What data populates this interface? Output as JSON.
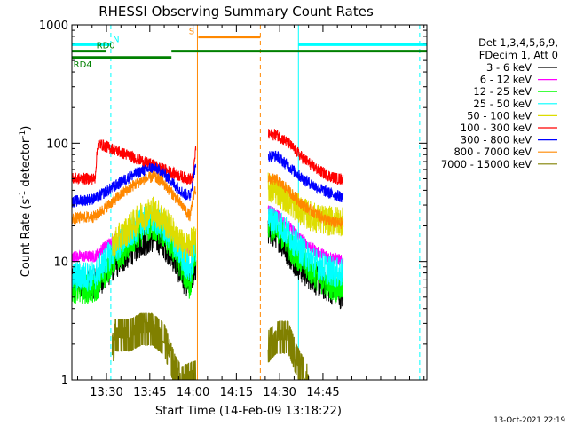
{
  "chart_data": {
    "type": "line",
    "title": "RHESSI Observing Summary Count Rates",
    "xlabel": "Start Time (14-Feb-09 13:18:22)",
    "ylabel_main": "Count Rate (s",
    "ylabel_sup1": "-1",
    "ylabel_mid": " detector",
    "ylabel_sup2": "-1",
    "ylabel_end": ")",
    "yscale": "log",
    "ylim": [
      1,
      1000
    ],
    "xlim_min": [
      798,
      921
    ],
    "yticks": [
      {
        "v": 1,
        "label": "1"
      },
      {
        "v": 10,
        "label": "10"
      },
      {
        "v": 100,
        "label": "100"
      },
      {
        "v": 1000,
        "label": "1000"
      }
    ],
    "xticks": [
      {
        "v": 810,
        "label": "13:30"
      },
      {
        "v": 825,
        "label": "13:45"
      },
      {
        "v": 840,
        "label": "14:00"
      },
      {
        "v": 855,
        "label": "14:15"
      },
      {
        "v": 870,
        "label": "14:30"
      },
      {
        "v": 885,
        "label": "14:45"
      }
    ],
    "legend_header": [
      "Det 1,3,4,5,6,9,",
      "FDecim 1, Att 0"
    ],
    "legend_position": "right",
    "timestamp": "13-Oct-2021 22:19",
    "gaps": [
      [
        841,
        866
      ]
    ],
    "series": [
      {
        "name": "3 - 6 keV",
        "color": "#000000",
        "key": [
          [
            798,
            6.5
          ],
          [
            806,
            6.5
          ],
          [
            808,
            7
          ],
          [
            812,
            9
          ],
          [
            818,
            12
          ],
          [
            822,
            14.5
          ],
          [
            826,
            16
          ],
          [
            829,
            15
          ],
          [
            833,
            11
          ],
          [
            837,
            7
          ],
          [
            839,
            6.4
          ],
          [
            840.5,
            9
          ],
          [
            866,
            18
          ],
          [
            869,
            17
          ],
          [
            873,
            12
          ],
          [
            878,
            8.5
          ],
          [
            883,
            6.8
          ],
          [
            887,
            6
          ],
          [
            890,
            5.5
          ],
          [
            892,
            5.2
          ]
        ]
      },
      {
        "name": "6 - 12 keV",
        "color": "#ff00ff",
        "key": [
          [
            798,
            11
          ],
          [
            806,
            11
          ],
          [
            808,
            12.5
          ],
          [
            812,
            15
          ],
          [
            818,
            18
          ],
          [
            822,
            22
          ],
          [
            826,
            23
          ],
          [
            829,
            21
          ],
          [
            833,
            17
          ],
          [
            837,
            12.5
          ],
          [
            839,
            12
          ],
          [
            840.5,
            16
          ],
          [
            866,
            27
          ],
          [
            869,
            25
          ],
          [
            873,
            20
          ],
          [
            878,
            15
          ],
          [
            883,
            12
          ],
          [
            887,
            11
          ],
          [
            890,
            10.5
          ],
          [
            892,
            10
          ]
        ]
      },
      {
        "name": "12 - 25 keV",
        "color": "#00ff00",
        "key": [
          [
            798,
            6
          ],
          [
            806,
            5.8
          ],
          [
            808,
            7.2
          ],
          [
            812,
            10
          ],
          [
            818,
            14
          ],
          [
            822,
            18
          ],
          [
            826,
            20
          ],
          [
            829,
            18
          ],
          [
            833,
            13
          ],
          [
            837,
            8
          ],
          [
            839,
            6.2
          ],
          [
            840.5,
            12
          ],
          [
            866,
            20
          ],
          [
            869,
            19
          ],
          [
            873,
            14
          ],
          [
            878,
            10
          ],
          [
            883,
            7.5
          ],
          [
            887,
            6.5
          ],
          [
            890,
            6
          ],
          [
            892,
            6
          ]
        ]
      },
      {
        "name": "25 - 50 keV",
        "color": "#00ffff",
        "key": [
          [
            798,
            7.5
          ],
          [
            806,
            7.5
          ],
          [
            808,
            9
          ],
          [
            812,
            12
          ],
          [
            818,
            17
          ],
          [
            822,
            21
          ],
          [
            826,
            23
          ],
          [
            829,
            21
          ],
          [
            833,
            15
          ],
          [
            837,
            10
          ],
          [
            839,
            8.5
          ],
          [
            840.5,
            13
          ],
          [
            866,
            23
          ],
          [
            869,
            22
          ],
          [
            873,
            17
          ],
          [
            878,
            12
          ],
          [
            883,
            9.5
          ],
          [
            887,
            8.5
          ],
          [
            890,
            8
          ],
          [
            892,
            8
          ]
        ]
      },
      {
        "name": "50 - 100 keV",
        "color": "#dddd00",
        "key": [
          [
            812,
            14
          ],
          [
            818,
            19
          ],
          [
            822,
            24
          ],
          [
            826,
            27
          ],
          [
            829,
            24
          ],
          [
            833,
            18
          ],
          [
            837,
            13
          ],
          [
            840.5,
            15
          ],
          [
            866,
            42
          ],
          [
            869,
            40
          ],
          [
            873,
            33
          ],
          [
            878,
            26
          ],
          [
            883,
            23
          ],
          [
            887,
            22
          ],
          [
            890,
            22
          ],
          [
            892,
            22
          ]
        ]
      },
      {
        "name": "100 - 300 keV",
        "color": "#ff0000",
        "key": [
          [
            798,
            50
          ],
          [
            806,
            50
          ],
          [
            807,
            100
          ],
          [
            838,
            50
          ],
          [
            840,
            50
          ],
          [
            841,
            95
          ],
          [
            866,
            118
          ],
          [
            869,
            118
          ],
          [
            873,
            100
          ],
          [
            878,
            75
          ],
          [
            883,
            60
          ],
          [
            887,
            53
          ],
          [
            890,
            50
          ],
          [
            892,
            50
          ]
        ]
      },
      {
        "name": "300 - 800 keV",
        "color": "#0000ff",
        "key": [
          [
            798,
            32
          ],
          [
            806,
            34
          ],
          [
            812,
            42
          ],
          [
            818,
            52
          ],
          [
            822,
            58
          ],
          [
            826,
            62
          ],
          [
            829,
            58
          ],
          [
            833,
            46
          ],
          [
            837,
            37
          ],
          [
            839,
            36
          ],
          [
            840.5,
            60
          ],
          [
            866,
            78
          ],
          [
            869,
            78
          ],
          [
            873,
            64
          ],
          [
            878,
            50
          ],
          [
            883,
            42
          ],
          [
            887,
            38
          ],
          [
            890,
            36
          ],
          [
            892,
            35
          ]
        ]
      },
      {
        "name": "800 - 7000 keV",
        "color": "#ff8800",
        "key": [
          [
            798,
            23
          ],
          [
            806,
            24
          ],
          [
            812,
            32
          ],
          [
            818,
            42
          ],
          [
            822,
            48
          ],
          [
            826,
            52
          ],
          [
            829,
            48
          ],
          [
            833,
            37
          ],
          [
            837,
            28
          ],
          [
            839,
            24
          ],
          [
            840.5,
            40
          ],
          [
            866,
            50
          ],
          [
            869,
            49
          ],
          [
            873,
            40
          ],
          [
            878,
            30
          ],
          [
            883,
            25
          ],
          [
            887,
            22
          ],
          [
            890,
            21
          ],
          [
            892,
            21
          ]
        ]
      },
      {
        "name": "7000 - 15000 keV",
        "color": "#808000",
        "key": [
          [
            812,
            1.8
          ],
          [
            813,
            2.5
          ],
          [
            818,
            2.5
          ],
          [
            822,
            2.8
          ],
          [
            826,
            2.8
          ],
          [
            830,
            2.3
          ],
          [
            834,
            1.2
          ],
          [
            836,
            1
          ],
          [
            866,
            2
          ],
          [
            869,
            2.4
          ],
          [
            873,
            2.4
          ],
          [
            876,
            1.5
          ],
          [
            878,
            1.2
          ],
          [
            880,
            1
          ]
        ]
      }
    ],
    "annotations": {
      "att_bars": [
        {
          "label": "N",
          "color": "#00ffff",
          "x0": 798,
          "x1": 811.5,
          "y": 680,
          "label_x": 812.2
        },
        {
          "label": "",
          "color": "#00ffff",
          "x0": 876.5,
          "x1": 921,
          "y": 680
        },
        {
          "label": "RD0",
          "color": "#008000",
          "x0": 798,
          "x1": 810,
          "y": 600,
          "label_x": 806.5
        },
        {
          "label": "RD4",
          "color": "#008000",
          "x0": 798,
          "x1": 832.5,
          "y": 530,
          "label_x": 798.5,
          "label_below": true
        },
        {
          "label": "",
          "color": "#008000",
          "x0": 832.5,
          "x1": 921,
          "y": 600
        },
        {
          "label": "S",
          "color": "#ff8800",
          "x0": 841.8,
          "x1": 863.3,
          "y": 790,
          "label_x": 838.5
        }
      ],
      "vlines": [
        {
          "x": 811.5,
          "color": "#00ffff",
          "dashed": true
        },
        {
          "x": 876.5,
          "color": "#00ffff",
          "dashed": false
        },
        {
          "x": 918.5,
          "color": "#00ffff",
          "dashed": true
        },
        {
          "x": 841.5,
          "color": "#ff8800",
          "dashed": false
        },
        {
          "x": 863.3,
          "color": "#ff8800",
          "dashed": true
        }
      ]
    }
  }
}
